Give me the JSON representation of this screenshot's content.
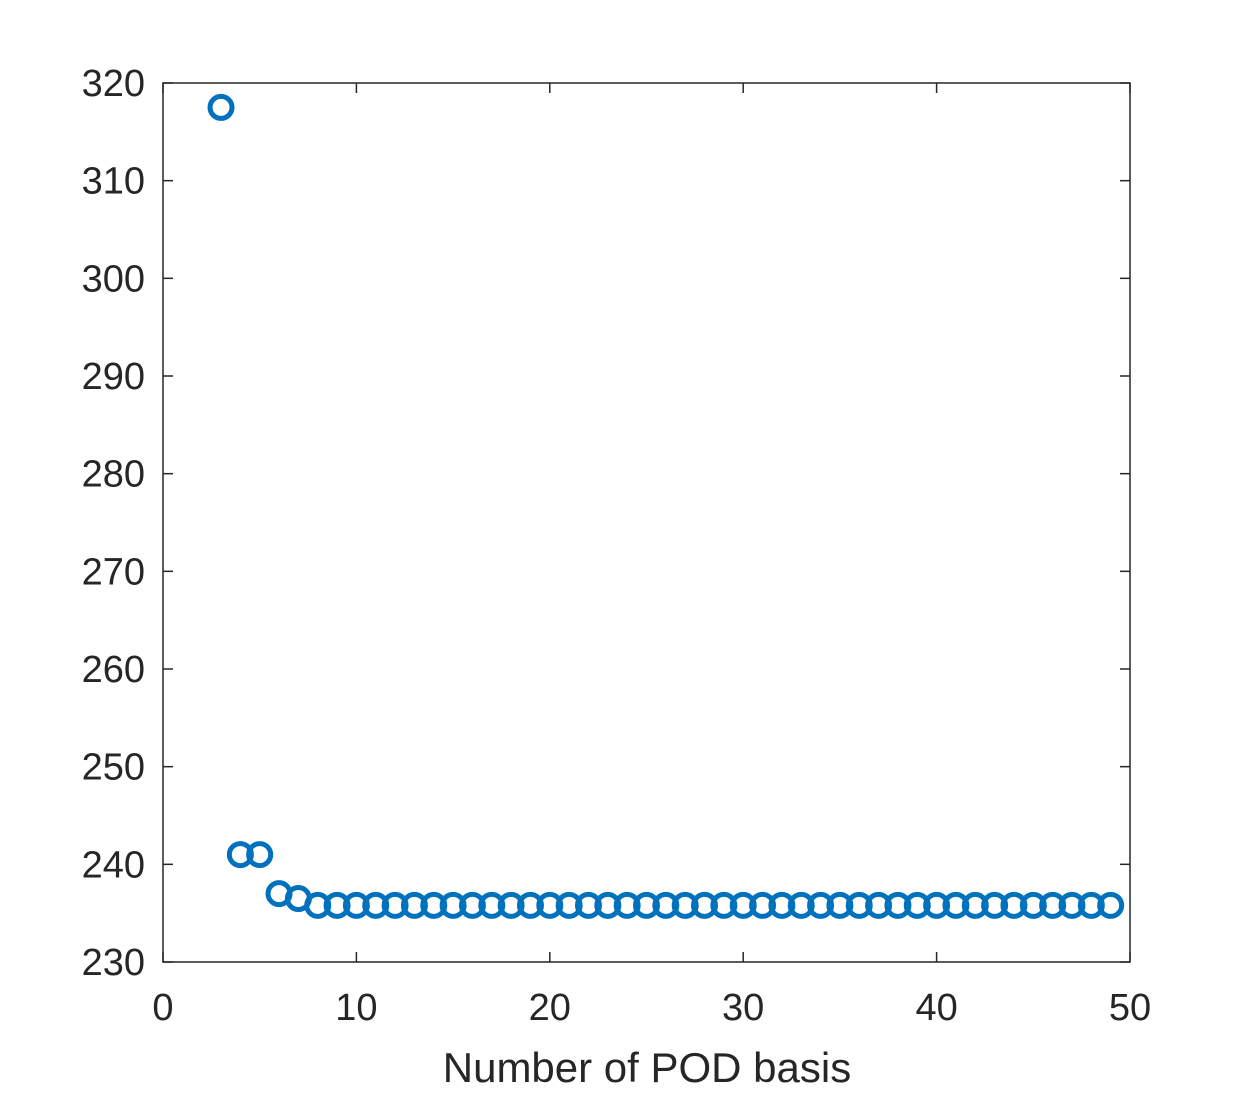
{
  "chart_data": {
    "type": "scatter",
    "title": "",
    "xlabel": "Number of POD basis",
    "ylabel": "",
    "xlim": [
      0,
      50
    ],
    "ylim": [
      230,
      320
    ],
    "xticks": [
      0,
      10,
      20,
      30,
      40,
      50
    ],
    "yticks": [
      230,
      240,
      250,
      260,
      270,
      280,
      290,
      300,
      310,
      320
    ],
    "xtick_labels": [
      "0",
      "10",
      "20",
      "30",
      "40",
      "50"
    ],
    "ytick_labels": [
      "230",
      "240",
      "250",
      "260",
      "270",
      "280",
      "290",
      "300",
      "310",
      "320"
    ],
    "grid": false,
    "box": true,
    "marker": "circle-open",
    "series": [
      {
        "color": "#0072BD",
        "x": [
          3,
          4,
          5,
          6,
          7,
          8,
          9,
          10,
          11,
          12,
          13,
          14,
          15,
          16,
          17,
          18,
          19,
          20,
          21,
          22,
          23,
          24,
          25,
          26,
          27,
          28,
          29,
          30,
          31,
          32,
          33,
          34,
          35,
          36,
          37,
          38,
          39,
          40,
          41,
          42,
          43,
          44,
          45,
          46,
          47,
          48,
          49
        ],
        "y": [
          317.5,
          241,
          241,
          237,
          236.5,
          235.8,
          235.8,
          235.8,
          235.8,
          235.8,
          235.8,
          235.8,
          235.8,
          235.8,
          235.8,
          235.8,
          235.8,
          235.8,
          235.8,
          235.8,
          235.8,
          235.8,
          235.8,
          235.8,
          235.8,
          235.8,
          235.8,
          235.8,
          235.8,
          235.8,
          235.8,
          235.8,
          235.8,
          235.8,
          235.8,
          235.8,
          235.8,
          235.8,
          235.8,
          235.8,
          235.8,
          235.8,
          235.8,
          235.8,
          235.8,
          235.8,
          235.8
        ]
      }
    ]
  }
}
